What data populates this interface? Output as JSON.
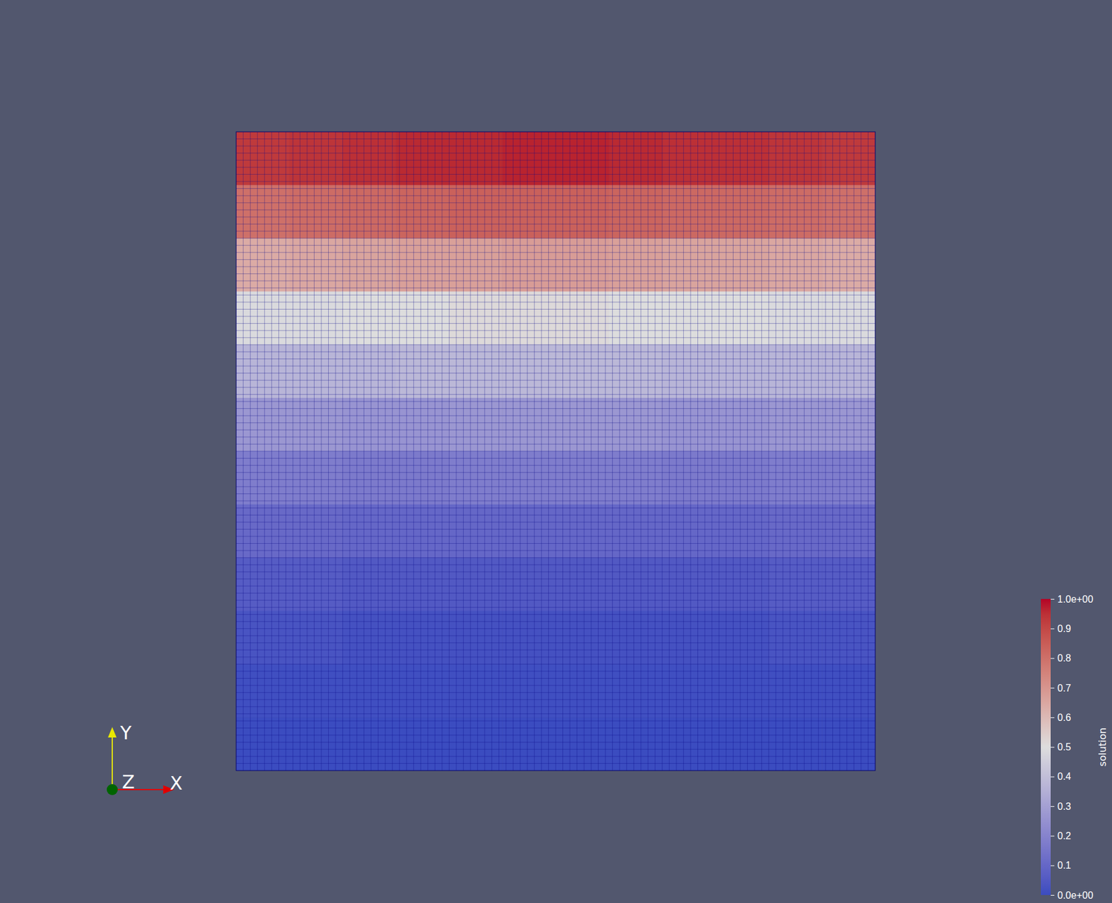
{
  "chart_data": {
    "type": "heatmap",
    "tick_labels": false,
    "cells": [
      [
        0.93,
        0.94,
        0.95,
        0.96,
        0.96,
        0.97,
        0.97,
        0.96,
        0.95,
        0.95,
        0.94,
        0.93
      ],
      [
        0.8,
        0.81,
        0.82,
        0.83,
        0.84,
        0.84,
        0.84,
        0.83,
        0.82,
        0.82,
        0.81,
        0.8
      ],
      [
        0.64,
        0.65,
        0.66,
        0.67,
        0.67,
        0.68,
        0.68,
        0.67,
        0.66,
        0.66,
        0.65,
        0.64
      ],
      [
        0.49,
        0.49,
        0.5,
        0.5,
        0.51,
        0.51,
        0.51,
        0.5,
        0.5,
        0.5,
        0.49,
        0.49
      ],
      [
        0.37,
        0.37,
        0.37,
        0.38,
        0.38,
        0.38,
        0.38,
        0.38,
        0.37,
        0.37,
        0.37,
        0.37
      ],
      [
        0.27,
        0.27,
        0.26,
        0.26,
        0.27,
        0.27,
        0.27,
        0.27,
        0.26,
        0.26,
        0.27,
        0.27
      ],
      [
        0.18,
        0.18,
        0.17,
        0.17,
        0.18,
        0.18,
        0.18,
        0.18,
        0.17,
        0.17,
        0.18,
        0.18
      ],
      [
        0.11,
        0.11,
        0.1,
        0.1,
        0.1,
        0.1,
        0.1,
        0.1,
        0.1,
        0.1,
        0.11,
        0.11
      ],
      [
        0.06,
        0.06,
        0.05,
        0.05,
        0.05,
        0.05,
        0.05,
        0.05,
        0.05,
        0.05,
        0.06,
        0.06
      ],
      [
        0.03,
        0.03,
        0.02,
        0.02,
        0.02,
        0.02,
        0.02,
        0.02,
        0.02,
        0.02,
        0.03,
        0.03
      ],
      [
        0.01,
        0.01,
        0.01,
        0.01,
        0.01,
        0.01,
        0.01,
        0.01,
        0.01,
        0.01,
        0.01,
        0.01
      ],
      [
        0.0,
        0.0,
        0.0,
        0.0,
        0.0,
        0.0,
        0.0,
        0.0,
        0.0,
        0.0,
        0.0,
        0.0
      ]
    ],
    "colorbar": {
      "title": "solution",
      "range": [
        0,
        1
      ],
      "ticks": [
        {
          "value": 0,
          "label": "0.0e+00"
        },
        0.1,
        0.2,
        0.3,
        0.4,
        0.5,
        0.6,
        0.7,
        0.8,
        0.9,
        {
          "value": 1,
          "label": "1.0e+00"
        }
      ]
    },
    "axes_triad": {
      "x": "X",
      "y": "Y",
      "z": "Z"
    }
  }
}
